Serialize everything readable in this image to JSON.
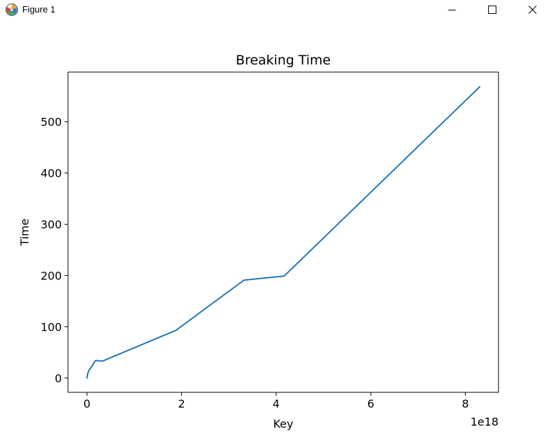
{
  "window": {
    "title": "Figure 1",
    "icon": "matplotlib-figure-icon",
    "controls": [
      "minimize-icon",
      "maximize-icon",
      "close-icon"
    ]
  },
  "chart_data": {
    "type": "line",
    "title": "Breaking Time",
    "xlabel": "Key",
    "ylabel": "Time",
    "x_offset_text": "1e18",
    "x_scale_factor": 1e+18,
    "xlim": [
      -0.4,
      8.7
    ],
    "ylim": [
      -28,
      597
    ],
    "x_ticks": [
      0,
      2,
      4,
      6,
      8
    ],
    "x_tick_labels": [
      "0",
      "2",
      "4",
      "6",
      "8"
    ],
    "y_ticks": [
      0,
      100,
      200,
      300,
      400,
      500
    ],
    "y_tick_labels": [
      "0",
      "100",
      "200",
      "300",
      "400",
      "500"
    ],
    "grid": false,
    "series": [
      {
        "color": "#1f77b4",
        "x": [
          0.0,
          0.005,
          0.01,
          0.02,
          0.05,
          0.1,
          0.15,
          0.18,
          0.33,
          1.88,
          3.32,
          4.17,
          8.3
        ],
        "y": [
          0,
          2,
          5,
          10,
          16,
          22,
          30,
          34,
          33,
          93,
          191,
          199,
          568
        ]
      }
    ]
  }
}
